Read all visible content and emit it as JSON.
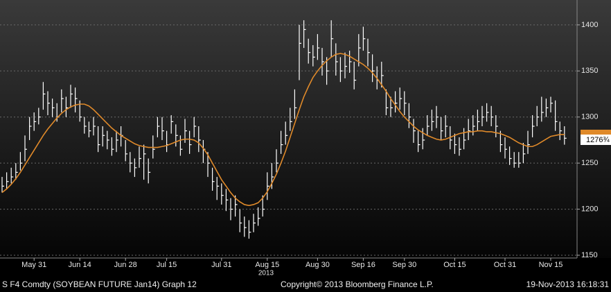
{
  "chart_data": {
    "type": "hlc_bar",
    "categories": [
      null,
      null,
      null,
      null,
      null,
      null,
      null,
      "May 31",
      null,
      null,
      null,
      null,
      null,
      null,
      null,
      null,
      null,
      "Jun 14",
      null,
      null,
      null,
      null,
      null,
      null,
      null,
      null,
      null,
      "Jun 28",
      null,
      null,
      null,
      null,
      null,
      null,
      null,
      null,
      "Jul 15",
      null,
      null,
      null,
      null,
      null,
      null,
      null,
      null,
      null,
      null,
      null,
      "Jul 31",
      null,
      null,
      null,
      null,
      null,
      null,
      null,
      null,
      null,
      "Aug 15",
      null,
      null,
      null,
      null,
      null,
      null,
      null,
      null,
      null,
      null,
      "Aug 30",
      null,
      null,
      null,
      null,
      null,
      null,
      null,
      null,
      null,
      "Sep 16",
      null,
      null,
      null,
      null,
      null,
      null,
      null,
      null,
      "Sep 30",
      null,
      null,
      null,
      null,
      null,
      null,
      null,
      null,
      null,
      null,
      "Oct 15",
      null,
      null,
      null,
      null,
      null,
      null,
      null,
      null,
      null,
      null,
      "Oct 31",
      null,
      null,
      null,
      null,
      null,
      null,
      null,
      null,
      null,
      "Nov 15",
      null,
      null,
      null
    ],
    "high": [
      1235,
      1240,
      1245,
      1250,
      1262,
      1280,
      1300,
      1305,
      1310,
      1338,
      1328,
      1320,
      1315,
      1330,
      1322,
      1335,
      1332,
      1318,
      1300,
      1295,
      1300,
      1290,
      1290,
      1285,
      1278,
      1285,
      1290,
      1275,
      1262,
      1255,
      1268,
      1270,
      1255,
      1280,
      1300,
      1300,
      1285,
      1302,
      1292,
      1280,
      1298,
      1285,
      1300,
      1290,
      1275,
      1262,
      1245,
      1235,
      1228,
      1222,
      1212,
      1215,
      1200,
      1192,
      1188,
      1195,
      1202,
      1215,
      1240,
      1250,
      1265,
      1285,
      1295,
      1310,
      1330,
      1400,
      1405,
      1385,
      1378,
      1390,
      1375,
      1365,
      1405,
      1380,
      1365,
      1370,
      1372,
      1360,
      1390,
      1398,
      1385,
      1368,
      1355,
      1360,
      1330,
      1322,
      1328,
      1332,
      1328,
      1315,
      1298,
      1285,
      1288,
      1302,
      1308,
      1312,
      1300,
      1302,
      1290,
      1282,
      1278,
      1288,
      1298,
      1302,
      1308,
      1312,
      1315,
      1312,
      1302,
      1285,
      1278,
      1268,
      1262,
      1262,
      1272,
      1285,
      1302,
      1312,
      1322,
      1320,
      1322,
      1318,
      1295,
      1290
    ],
    "low": [
      1218,
      1222,
      1228,
      1232,
      1242,
      1252,
      1275,
      1285,
      1292,
      1308,
      1302,
      1300,
      1295,
      1305,
      1300,
      1310,
      1305,
      1295,
      1282,
      1278,
      1280,
      1262,
      1268,
      1265,
      1258,
      1262,
      1268,
      1252,
      1240,
      1235,
      1245,
      1232,
      1228,
      1255,
      1278,
      1275,
      1262,
      1282,
      1268,
      1258,
      1272,
      1260,
      1278,
      1262,
      1250,
      1235,
      1220,
      1210,
      1205,
      1198,
      1188,
      1192,
      1175,
      1170,
      1168,
      1175,
      1182,
      1192,
      1210,
      1222,
      1240,
      1260,
      1270,
      1285,
      1298,
      1340,
      1375,
      1358,
      1355,
      1362,
      1345,
      1335,
      1365,
      1345,
      1338,
      1342,
      1348,
      1330,
      1355,
      1372,
      1355,
      1338,
      1330,
      1332,
      1302,
      1300,
      1305,
      1308,
      1302,
      1288,
      1272,
      1262,
      1265,
      1280,
      1285,
      1288,
      1275,
      1278,
      1265,
      1260,
      1258,
      1265,
      1275,
      1280,
      1285,
      1290,
      1295,
      1290,
      1278,
      1262,
      1255,
      1248,
      1245,
      1245,
      1250,
      1260,
      1278,
      1290,
      1295,
      1300,
      1305,
      1285,
      1275,
      1270
    ],
    "close": [
      1225,
      1230,
      1235,
      1240,
      1250,
      1265,
      1290,
      1295,
      1300,
      1325,
      1315,
      1310,
      1300,
      1320,
      1310,
      1325,
      1320,
      1300,
      1290,
      1285,
      1290,
      1270,
      1280,
      1275,
      1265,
      1275,
      1280,
      1260,
      1250,
      1245,
      1255,
      1260,
      1240,
      1265,
      1290,
      1285,
      1270,
      1295,
      1280,
      1265,
      1285,
      1270,
      1290,
      1275,
      1265,
      1250,
      1230,
      1225,
      1215,
      1210,
      1200,
      1205,
      1185,
      1180,
      1175,
      1185,
      1190,
      1200,
      1225,
      1235,
      1250,
      1270,
      1280,
      1295,
      1310,
      1380,
      1395,
      1370,
      1365,
      1375,
      1360,
      1350,
      1385,
      1360,
      1350,
      1355,
      1360,
      1340,
      1375,
      1385,
      1370,
      1350,
      1340,
      1345,
      1310,
      1310,
      1315,
      1320,
      1315,
      1300,
      1285,
      1270,
      1275,
      1290,
      1295,
      1300,
      1285,
      1290,
      1275,
      1270,
      1265,
      1275,
      1285,
      1290,
      1295,
      1300,
      1305,
      1300,
      1290,
      1270,
      1265,
      1255,
      1250,
      1250,
      1260,
      1270,
      1290,
      1300,
      1305,
      1310,
      1315,
      1295,
      1285,
      1277
    ],
    "moving_average": [
      1218,
      1222,
      1227,
      1233,
      1240,
      1248,
      1256,
      1264,
      1272,
      1280,
      1287,
      1293,
      1299,
      1304,
      1308,
      1311,
      1313,
      1314,
      1314,
      1312,
      1308,
      1303,
      1298,
      1293,
      1288,
      1284,
      1280,
      1277,
      1274,
      1271,
      1269,
      1268,
      1267,
      1267,
      1267,
      1268,
      1269,
      1271,
      1273,
      1275,
      1276,
      1276,
      1275,
      1272,
      1266,
      1259,
      1250,
      1241,
      1232,
      1225,
      1218,
      1212,
      1208,
      1205,
      1204,
      1205,
      1207,
      1212,
      1219,
      1228,
      1238,
      1250,
      1263,
      1278,
      1293,
      1308,
      1322,
      1333,
      1343,
      1350,
      1356,
      1361,
      1365,
      1368,
      1369,
      1368,
      1366,
      1363,
      1360,
      1357,
      1353,
      1348,
      1342,
      1335,
      1328,
      1320,
      1313,
      1306,
      1300,
      1295,
      1290,
      1286,
      1283,
      1280,
      1278,
      1276,
      1275,
      1276,
      1278,
      1280,
      1282,
      1283,
      1284,
      1284,
      1285,
      1285,
      1284,
      1284,
      1283,
      1282,
      1280,
      1278,
      1275,
      1272,
      1270,
      1268,
      1268,
      1270,
      1273,
      1276,
      1279,
      1280,
      1281,
      1281
    ],
    "bar_color": "#ffffff",
    "ma_color": "#e08a2a",
    "ylim": [
      1147,
      1427
    ],
    "yticks": [
      1150,
      1200,
      1250,
      1300,
      1350,
      1400
    ],
    "grid": true,
    "last_price_label": "1276¾",
    "year_label": "2013",
    "footer_left": "S F4 Comdty (SOYBEAN FUTURE   Jan14) Graph 12",
    "footer_center": "Copyright© 2013 Bloomberg Finance L.P.",
    "footer_right": "19-Nov-2013 16:18:31"
  }
}
